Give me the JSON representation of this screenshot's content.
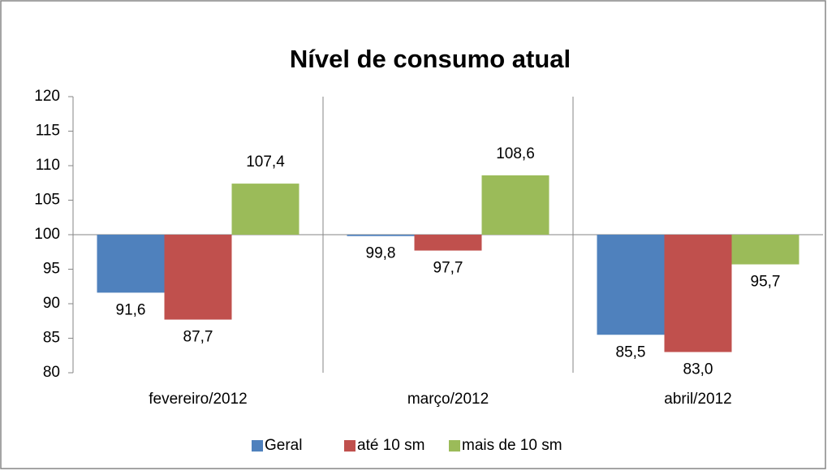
{
  "chart_data": {
    "type": "bar",
    "title": "Nível de consumo atual",
    "categories": [
      "fevereiro/2012",
      "março/2012",
      "abril/2012"
    ],
    "series": [
      {
        "name": "Geral",
        "color": "#4f81bd",
        "values": [
          91.6,
          99.8,
          85.5
        ],
        "value_labels": [
          "91,6",
          "99,8",
          "85,5"
        ]
      },
      {
        "name": "até 10 sm",
        "color": "#c0504d",
        "values": [
          87.7,
          97.7,
          83.0
        ],
        "value_labels": [
          "87,7",
          "97,7",
          "83,0"
        ]
      },
      {
        "name": "mais de 10 sm",
        "color": "#9bbb59",
        "values": [
          107.4,
          108.6,
          95.7
        ],
        "value_labels": [
          "107,4",
          "108,6",
          "95,7"
        ]
      }
    ],
    "baseline": 100,
    "ylim": [
      80,
      120
    ],
    "yticks": [
      80,
      85,
      90,
      95,
      100,
      105,
      110,
      115,
      120
    ],
    "legend": "bottom"
  }
}
